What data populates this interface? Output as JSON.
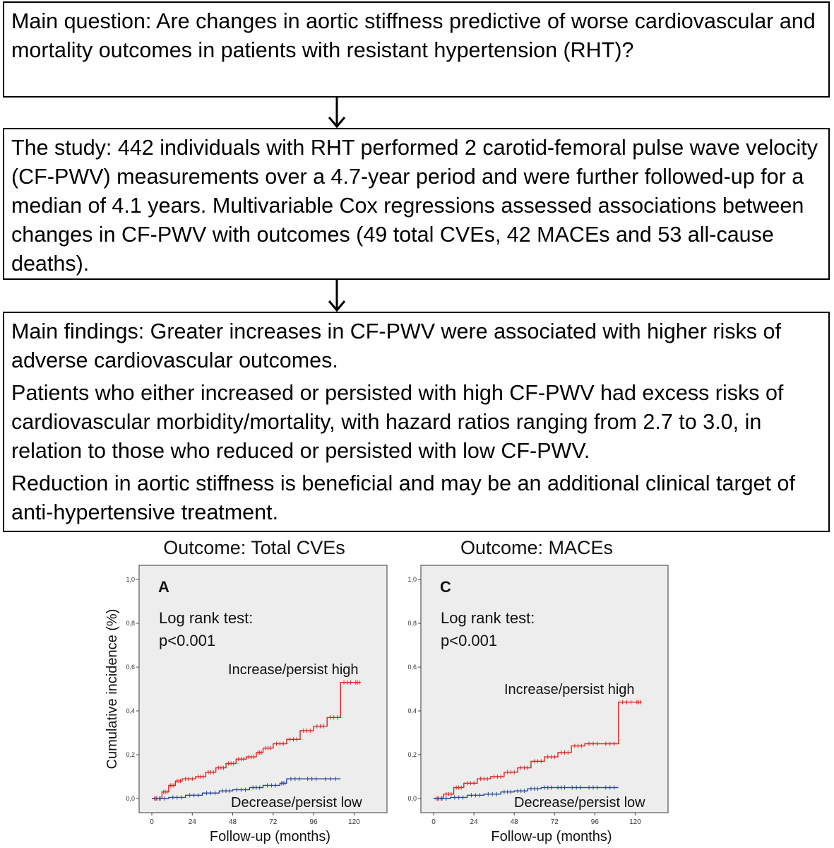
{
  "box1": {
    "text": "Main question: Are changes in aortic stiffness predictive of worse cardiovascular and mortality outcomes in patients with resistant hypertension (RHT)?"
  },
  "box2": {
    "text": "The study: 442 individuals with RHT performed  2 carotid-femoral pulse wave velocity (CF-PWV) measurements over a 4.7-year period and were further followed-up for a median of 4.1 years. Multivariable Cox regressions assessed associations between changes in CF-PWV with outcomes (49 total CVEs, 42 MACEs and 53 all-cause deaths)."
  },
  "box3": {
    "p1": "Main findings: Greater increases in CF-PWV were associated with higher risks of adverse cardiovascular outcomes.",
    "p2": "Patients who either increased or persisted with high CF-PWV had excess risks of cardiovascular morbidity/mortality, with hazard ratios ranging from 2.7 to 3.0, in relation to those who reduced or persisted with low CF-PWV.",
    "p3": "Reduction in aortic stiffness is beneficial and may be an additional clinical target of anti-hypertensive treatment."
  },
  "colors": {
    "panel_bg": "#ededed",
    "high_series": "#e8201e",
    "low_series": "#2b4a9c"
  },
  "chart_data": [
    {
      "type": "line",
      "title": "Outcome: Total CVEs",
      "panel_label": "A",
      "annotation_line1": "Log rank test:",
      "annotation_line2": "p<0.001",
      "xlabel": "Follow-up (months)",
      "ylabel": "Cumulative incidence (%)",
      "xlim": [
        0,
        132
      ],
      "ylim": [
        0,
        1.0
      ],
      "x_ticks": [
        "0",
        "24",
        "48",
        "72",
        "96",
        "120"
      ],
      "y_ticks": [
        "0,0",
        "0,2",
        "0,4",
        "0,6",
        "0,8",
        "1,0"
      ],
      "grid": false,
      "series": [
        {
          "name": "Increase/persist high",
          "x": [
            0,
            6,
            10,
            14,
            18,
            26,
            32,
            38,
            44,
            50,
            56,
            62,
            66,
            72,
            80,
            88,
            96,
            104,
            112,
            120,
            124
          ],
          "y": [
            0,
            0.03,
            0.06,
            0.08,
            0.09,
            0.1,
            0.12,
            0.14,
            0.16,
            0.18,
            0.19,
            0.21,
            0.23,
            0.25,
            0.27,
            0.31,
            0.33,
            0.37,
            0.53,
            0.53,
            0.53
          ]
        },
        {
          "name": "Decrease/persist low",
          "x": [
            0,
            10,
            20,
            30,
            40,
            48,
            58,
            66,
            76,
            80,
            90,
            100,
            112
          ],
          "y": [
            0,
            0.005,
            0.015,
            0.025,
            0.035,
            0.04,
            0.05,
            0.06,
            0.07,
            0.09,
            0.09,
            0.09,
            0.09
          ]
        }
      ]
    },
    {
      "type": "line",
      "title": "Outcome: MACEs",
      "panel_label": "C",
      "annotation_line1": "Log rank test:",
      "annotation_line2": "p<0.001",
      "xlabel": "Follow-up (months)",
      "ylabel": "",
      "xlim": [
        0,
        132
      ],
      "ylim": [
        0,
        1.0
      ],
      "x_ticks": [
        "0",
        "24",
        "48",
        "72",
        "96",
        "120"
      ],
      "y_ticks": [
        "0,0",
        "0,2",
        "0,4",
        "0,6",
        "0,8",
        "1,0"
      ],
      "grid": false,
      "series": [
        {
          "name": "Increase/persist high",
          "x": [
            0,
            6,
            12,
            18,
            26,
            34,
            42,
            50,
            58,
            66,
            74,
            82,
            90,
            100,
            110,
            120,
            124
          ],
          "y": [
            0,
            0.02,
            0.05,
            0.07,
            0.09,
            0.1,
            0.12,
            0.14,
            0.17,
            0.19,
            0.21,
            0.24,
            0.25,
            0.25,
            0.44,
            0.44,
            0.44
          ]
        },
        {
          "name": "Decrease/persist low",
          "x": [
            0,
            10,
            20,
            30,
            40,
            48,
            56,
            64,
            72,
            80,
            90,
            100,
            110
          ],
          "y": [
            0,
            0.005,
            0.015,
            0.02,
            0.03,
            0.035,
            0.045,
            0.05,
            0.05,
            0.05,
            0.05,
            0.05,
            0.05
          ]
        }
      ]
    }
  ]
}
